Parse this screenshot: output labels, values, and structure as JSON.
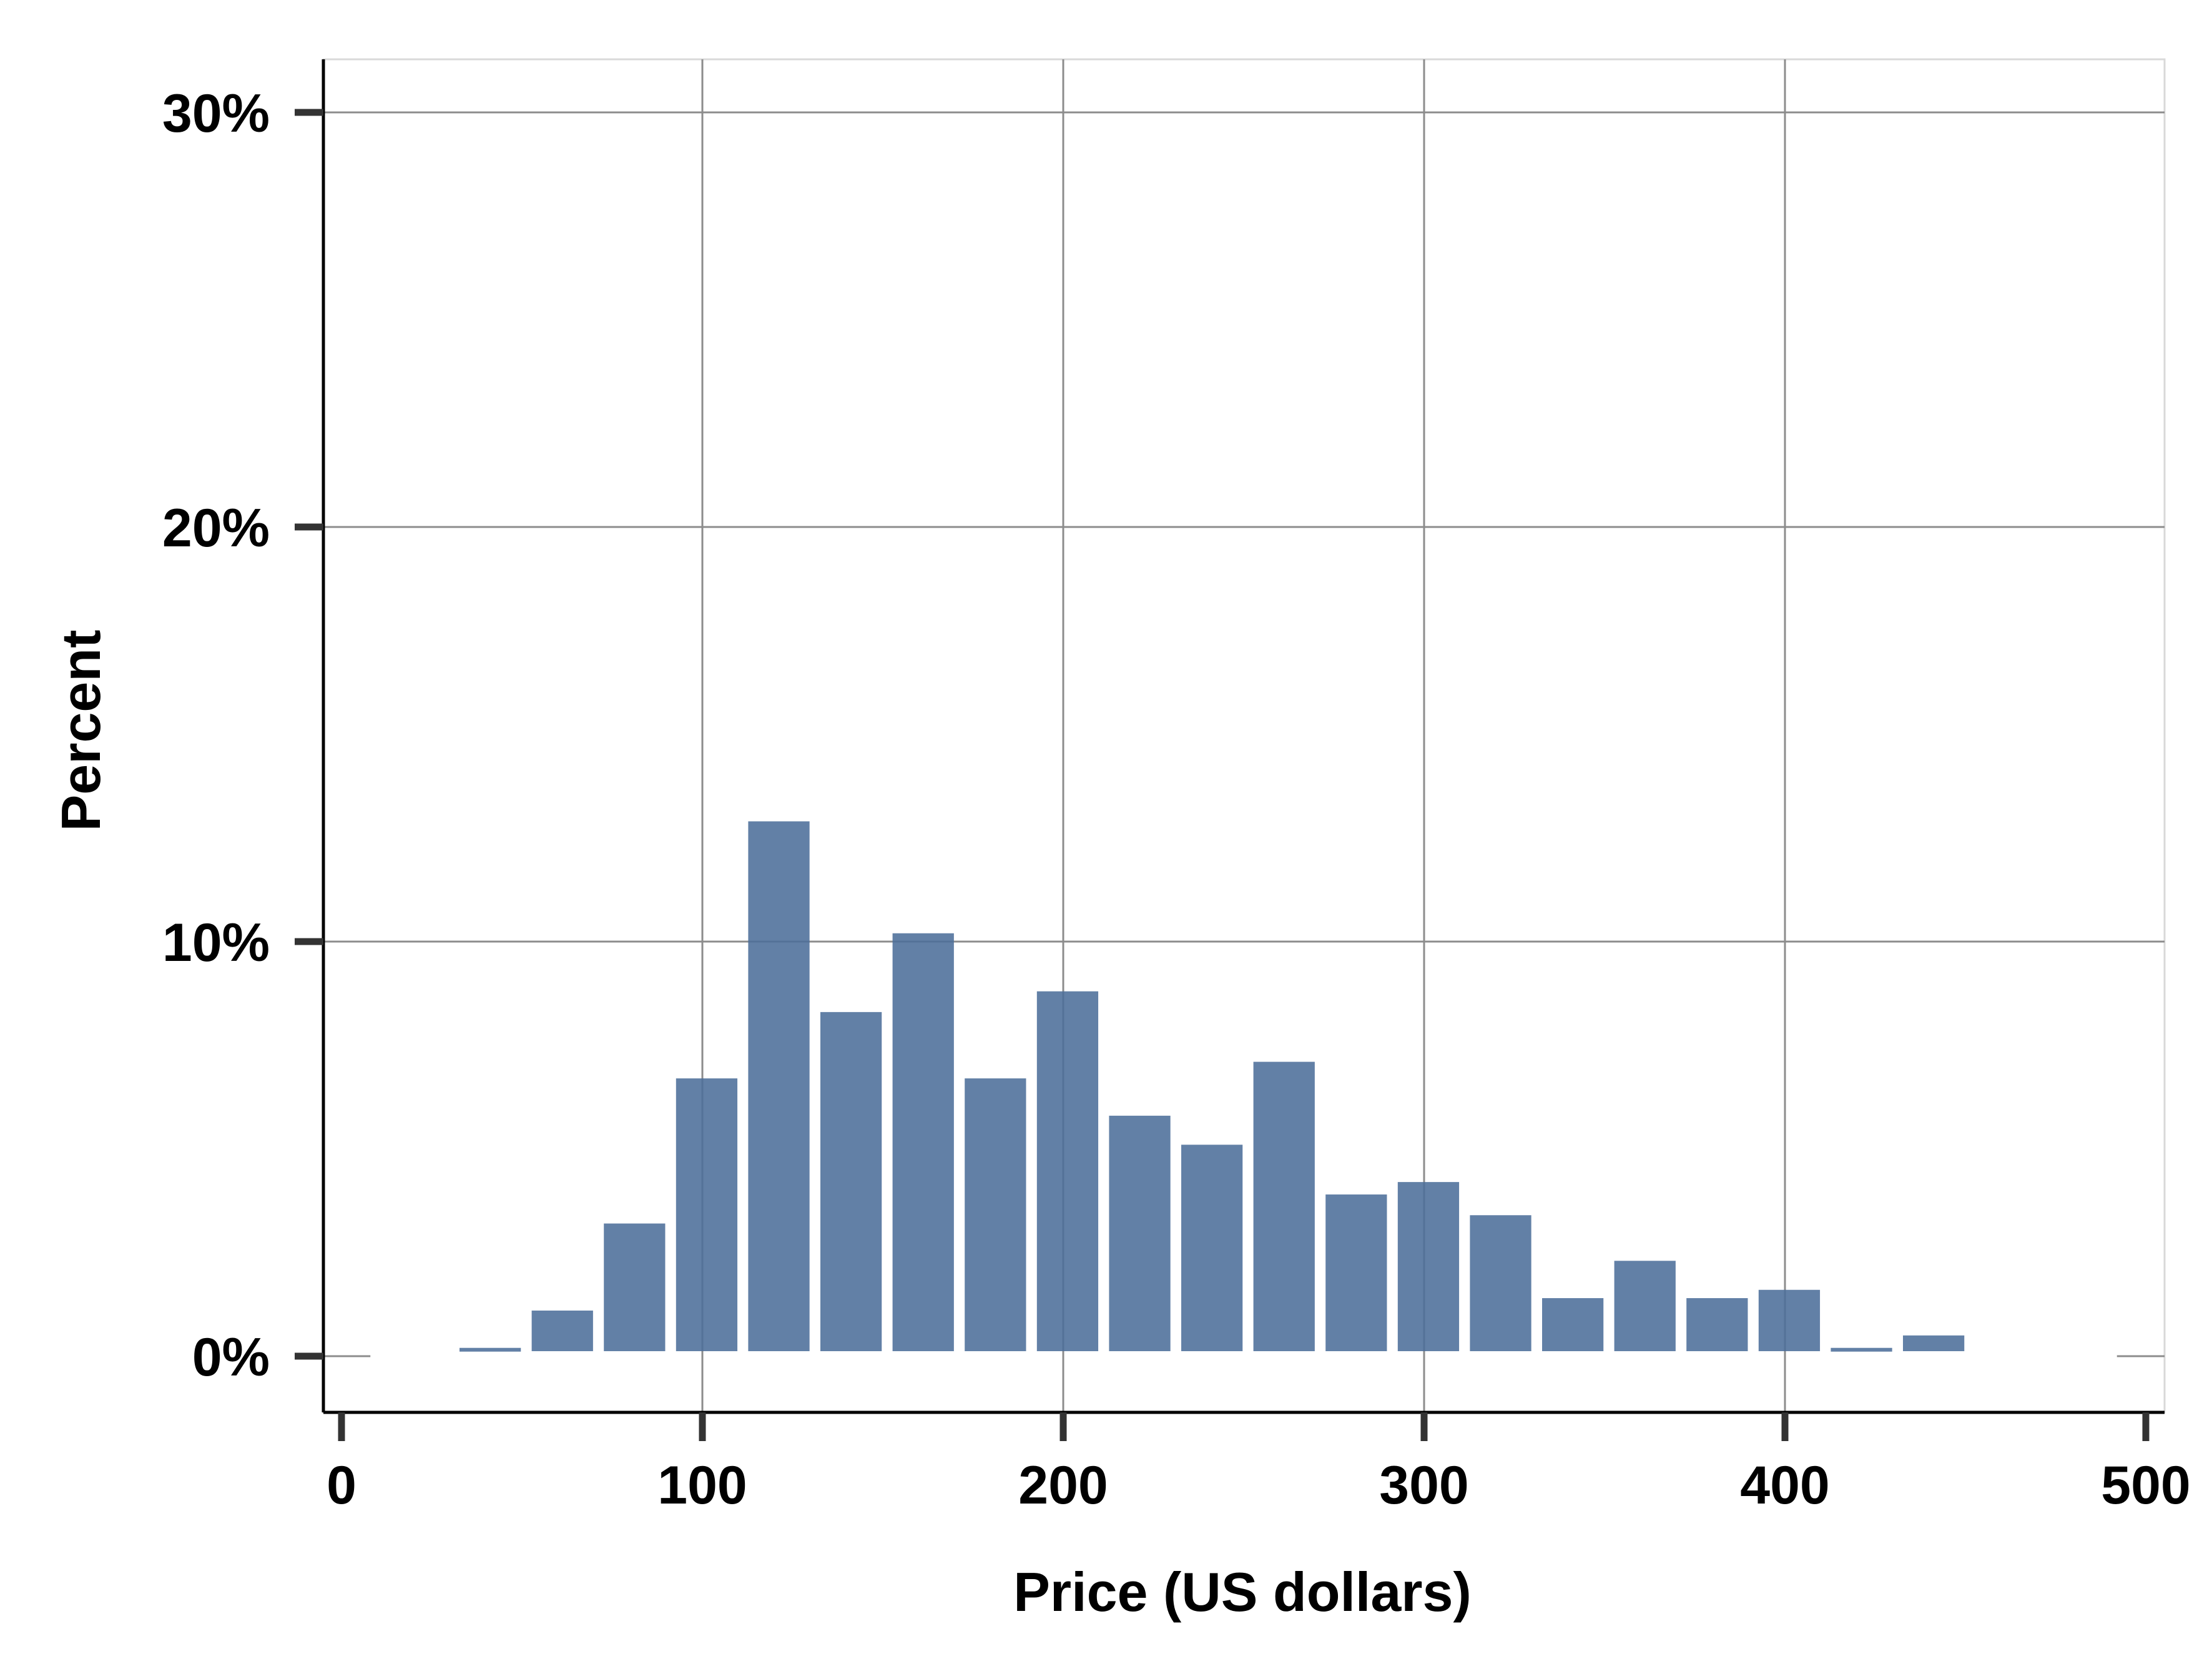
{
  "chart_data": {
    "type": "bar",
    "title": "",
    "xlabel": "Price (US dollars)",
    "ylabel": "Percent",
    "xlim": [
      0,
      500
    ],
    "ylim": [
      -1.3,
      31.3
    ],
    "x_ticks": [
      0,
      100,
      200,
      300,
      400,
      500
    ],
    "x_tick_labels": [
      "0",
      "100",
      "200",
      "300",
      "400",
      "500"
    ],
    "y_ticks": [
      0,
      10,
      20,
      30
    ],
    "y_tick_labels": [
      "0%",
      "10%",
      "20%",
      "30%"
    ],
    "grid": true,
    "bin_width": 20,
    "bins": [
      {
        "x0": 30,
        "x1": 50,
        "value": 0.2
      },
      {
        "x0": 50,
        "x1": 70,
        "value": 1.1
      },
      {
        "x0": 70,
        "x1": 90,
        "value": 3.2
      },
      {
        "x0": 90,
        "x1": 110,
        "value": 6.7
      },
      {
        "x0": 110,
        "x1": 130,
        "value": 12.9
      },
      {
        "x0": 130,
        "x1": 150,
        "value": 8.3
      },
      {
        "x0": 150,
        "x1": 170,
        "value": 10.2
      },
      {
        "x0": 170,
        "x1": 190,
        "value": 6.7
      },
      {
        "x0": 190,
        "x1": 210,
        "value": 8.8
      },
      {
        "x0": 210,
        "x1": 230,
        "value": 5.8
      },
      {
        "x0": 230,
        "x1": 250,
        "value": 5.1
      },
      {
        "x0": 250,
        "x1": 270,
        "value": 7.1
      },
      {
        "x0": 270,
        "x1": 290,
        "value": 3.9
      },
      {
        "x0": 290,
        "x1": 310,
        "value": 4.2
      },
      {
        "x0": 310,
        "x1": 330,
        "value": 3.4
      },
      {
        "x0": 330,
        "x1": 350,
        "value": 1.4
      },
      {
        "x0": 350,
        "x1": 370,
        "value": 2.3
      },
      {
        "x0": 370,
        "x1": 390,
        "value": 1.4
      },
      {
        "x0": 390,
        "x1": 410,
        "value": 1.6
      },
      {
        "x0": 410,
        "x1": 430,
        "value": 0.2
      },
      {
        "x0": 430,
        "x1": 450,
        "value": 0.5
      }
    ],
    "colors": {
      "bar": "#4c6e9a",
      "grid": "#8c8c8c",
      "axis": "#000000",
      "tick": "#333333"
    }
  }
}
